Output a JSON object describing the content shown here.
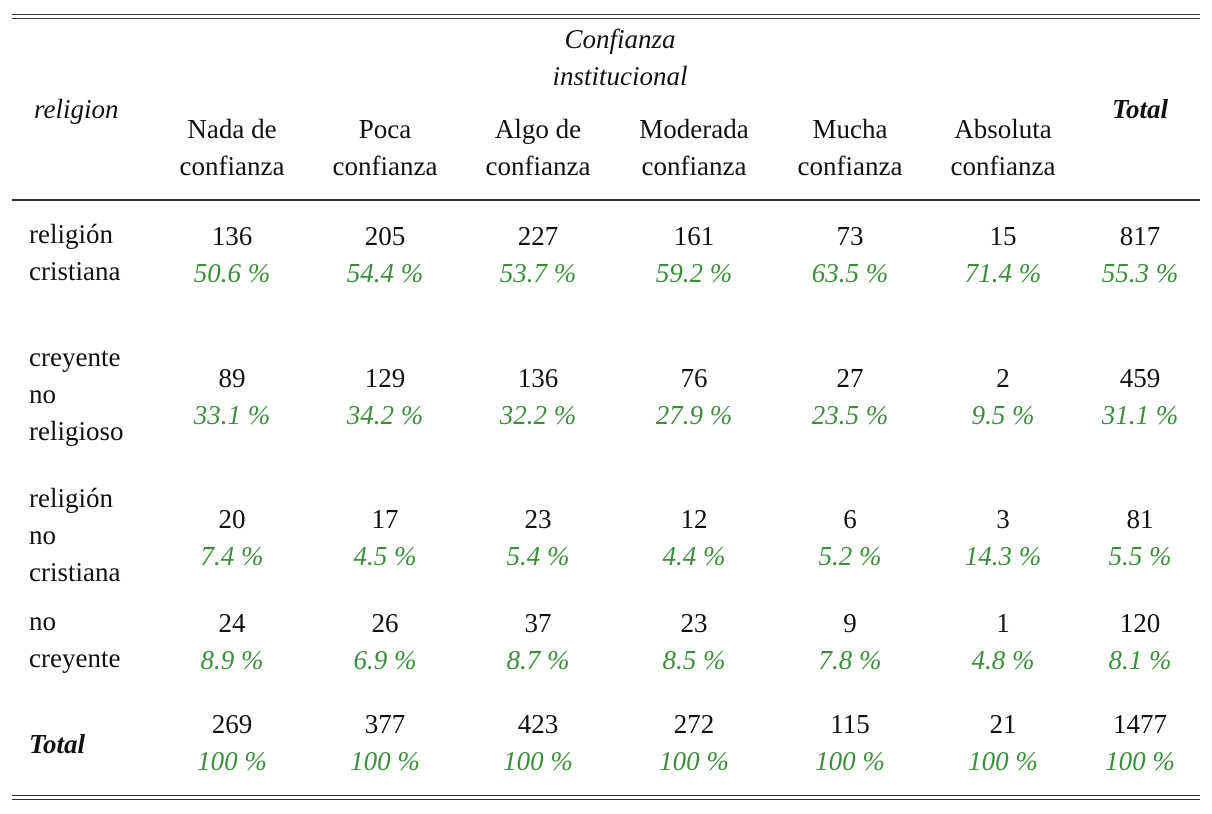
{
  "table": {
    "column_group_title": [
      "Confianza",
      "institucional"
    ],
    "row_variable": "religion",
    "total_label": "Total",
    "columns": [
      [
        "Nada de",
        "confianza"
      ],
      [
        "Poca",
        "confianza"
      ],
      [
        "Algo de",
        "confianza"
      ],
      [
        "Moderada",
        "confianza"
      ],
      [
        "Mucha",
        "confianza"
      ],
      [
        "Absoluta",
        "confianza"
      ]
    ],
    "rows": [
      {
        "label": [
          "religión",
          "cristiana"
        ],
        "cells": [
          [
            "136",
            "50.6 %"
          ],
          [
            "205",
            "54.4 %"
          ],
          [
            "227",
            "53.7 %"
          ],
          [
            "161",
            "59.2 %"
          ],
          [
            "73",
            "63.5 %"
          ],
          [
            "15",
            "71.4 %"
          ],
          [
            "817",
            "55.3 %"
          ]
        ]
      },
      {
        "label": [
          "creyente",
          "no",
          "religioso"
        ],
        "cells": [
          [
            "89",
            "33.1 %"
          ],
          [
            "129",
            "34.2 %"
          ],
          [
            "136",
            "32.2 %"
          ],
          [
            "76",
            "27.9 %"
          ],
          [
            "27",
            "23.5 %"
          ],
          [
            "2",
            "9.5 %"
          ],
          [
            "459",
            "31.1 %"
          ]
        ]
      },
      {
        "label": [
          "religión",
          "no",
          "cristiana"
        ],
        "cells": [
          [
            "20",
            "7.4 %"
          ],
          [
            "17",
            "4.5 %"
          ],
          [
            "23",
            "5.4 %"
          ],
          [
            "12",
            "4.4 %"
          ],
          [
            "6",
            "5.2 %"
          ],
          [
            "3",
            "14.3 %"
          ],
          [
            "81",
            "5.5 %"
          ]
        ]
      },
      {
        "label": [
          "no",
          "creyente"
        ],
        "cells": [
          [
            "24",
            "8.9 %"
          ],
          [
            "26",
            "6.9 %"
          ],
          [
            "37",
            "8.7 %"
          ],
          [
            "23",
            "8.5 %"
          ],
          [
            "9",
            "7.8 %"
          ],
          [
            "1",
            "4.8 %"
          ],
          [
            "120",
            "8.1 %"
          ]
        ]
      }
    ],
    "total_row": {
      "label": "Total",
      "cells": [
        [
          "269",
          "100 %"
        ],
        [
          "377",
          "100 %"
        ],
        [
          "423",
          "100 %"
        ],
        [
          "272",
          "100 %"
        ],
        [
          "115",
          "100 %"
        ],
        [
          "21",
          "100 %"
        ],
        [
          "1477",
          "100 %"
        ]
      ]
    },
    "colors": {
      "percent_text": "#3c8e3c",
      "count_text": "#111111",
      "rules": "#333333"
    }
  }
}
